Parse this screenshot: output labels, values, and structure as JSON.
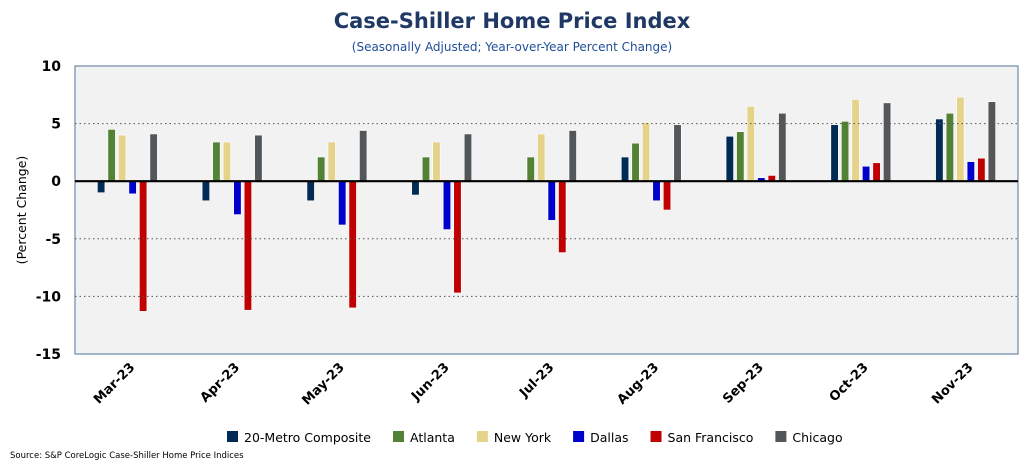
{
  "chart_data": {
    "type": "bar",
    "title": "Case-Shiller Home Price Index",
    "subtitle": "(Seasonally Adjusted; Year-over-Year Percent Change)",
    "xlabel": "",
    "ylabel": "(Percent Change)",
    "ylim": [
      -15,
      10
    ],
    "yticks": [
      10,
      5,
      0,
      -5,
      -10,
      -15
    ],
    "grid": true,
    "legend": "bottom",
    "source": "Source: S&P CoreLogic Case-Shiller Home Price Indices",
    "categories": [
      "Mar-23",
      "Apr-23",
      "May-23",
      "Jun-23",
      "Jul-23",
      "Aug-23",
      "Sep-23",
      "Oct-23",
      "Nov-23"
    ],
    "series": [
      {
        "name": "20-Metro Composite",
        "color": "#002b55",
        "values": [
          -1.0,
          -1.7,
          -1.7,
          -1.2,
          0.1,
          2.1,
          3.9,
          4.9,
          5.4
        ]
      },
      {
        "name": "Atlanta",
        "color": "#548235",
        "values": [
          4.5,
          3.4,
          2.1,
          2.1,
          2.1,
          3.3,
          4.3,
          5.2,
          5.9
        ]
      },
      {
        "name": "New York",
        "color": "#e6d38a",
        "values": [
          4.0,
          3.4,
          3.4,
          3.4,
          4.1,
          5.1,
          6.5,
          7.1,
          7.3
        ]
      },
      {
        "name": "Dallas",
        "color": "#0000cc",
        "values": [
          -1.1,
          -2.9,
          -3.8,
          -4.2,
          -3.4,
          -1.7,
          0.3,
          1.3,
          1.7
        ]
      },
      {
        "name": "San Francisco",
        "color": "#c00000",
        "values": [
          -11.3,
          -11.2,
          -11.0,
          -9.7,
          -6.2,
          -2.5,
          0.5,
          1.6,
          2.0
        ]
      },
      {
        "name": "Chicago",
        "color": "#53575a",
        "values": [
          4.1,
          4.0,
          4.4,
          4.1,
          4.4,
          4.9,
          5.9,
          6.8,
          6.9
        ]
      }
    ]
  }
}
